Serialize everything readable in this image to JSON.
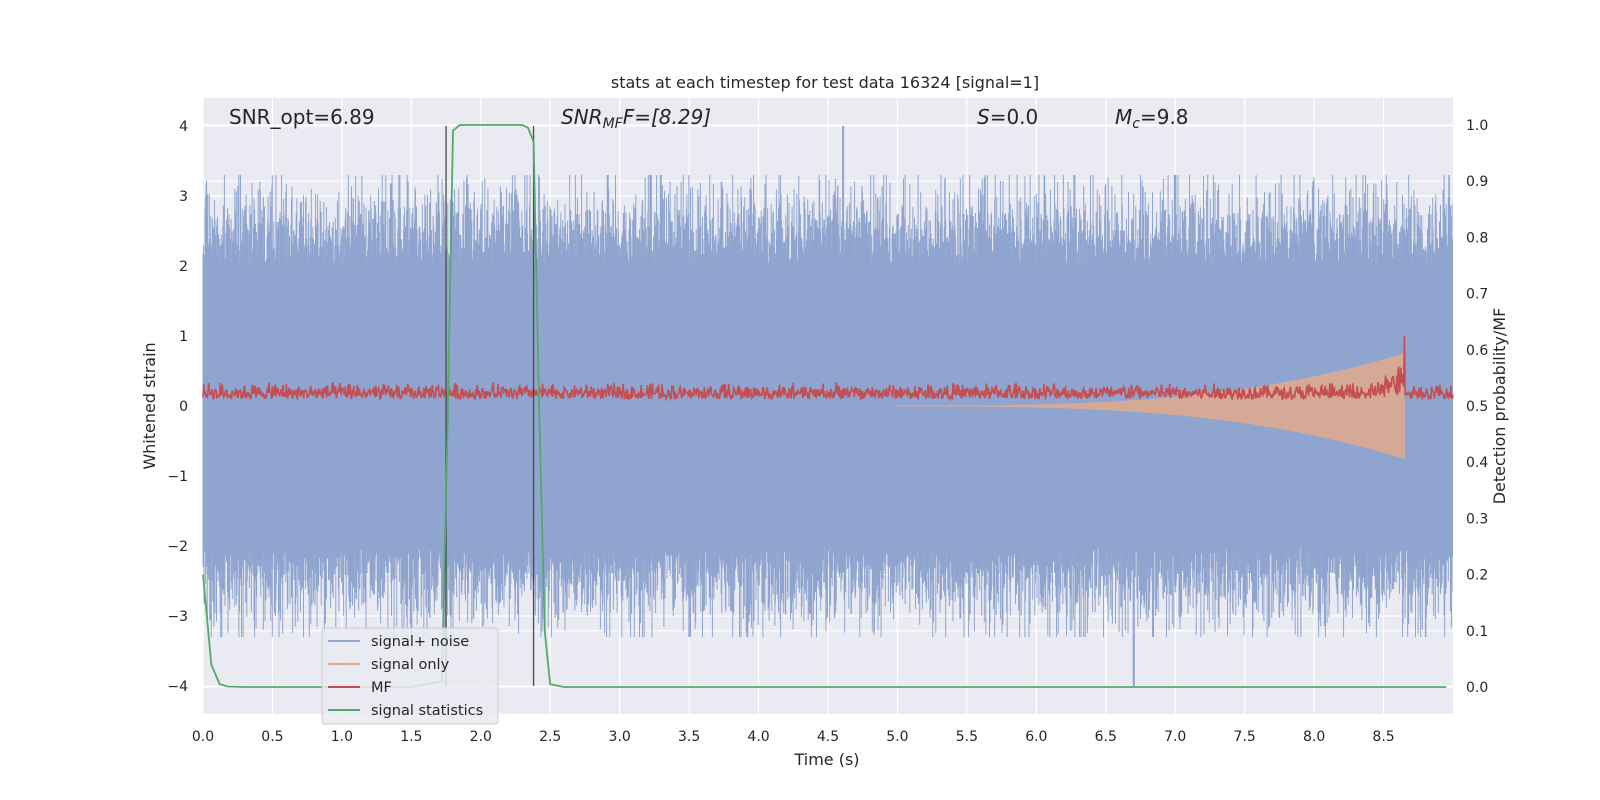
{
  "chart_data": {
    "type": "line",
    "title": "stats at each timestep for test data 16324 [signal=1]",
    "xlabel": "Time (s)",
    "ylabel_left": "Whitened strain",
    "ylabel_right": "Detection probability/MF",
    "xlim": [
      0.0,
      9.0
    ],
    "ylim_left": [
      -4.4,
      4.4
    ],
    "ylim_right": [
      -0.048,
      1.048
    ],
    "grid": true,
    "x_ticks": [
      "0.0",
      "0.5",
      "1.0",
      "1.5",
      "2.0",
      "2.5",
      "3.0",
      "3.5",
      "4.0",
      "4.5",
      "5.0",
      "5.5",
      "6.0",
      "6.5",
      "7.0",
      "7.5",
      "8.0",
      "8.5"
    ],
    "y_ticks_left": [
      "−4",
      "−3",
      "−2",
      "−1",
      "0",
      "1",
      "2",
      "3",
      "4"
    ],
    "y_ticks_right": [
      "0.0",
      "0.1",
      "0.2",
      "0.3",
      "0.4",
      "0.5",
      "0.6",
      "0.7",
      "0.8",
      "0.9",
      "1.0"
    ],
    "annotations": {
      "snr_opt": "SNR_opt=6.89",
      "snr_mf_main": "SNR",
      "snr_mf_sub": "MF",
      "snr_mf_tail": "F=[8.29]",
      "s_italic": "S",
      "s_rest": "=0.0",
      "mc_main": "M",
      "mc_sub": "c",
      "mc_rest": "=9.8"
    },
    "vertical_lines_x": [
      1.75,
      2.38
    ],
    "legend": {
      "position": "lower-left",
      "entries": [
        "signal+ noise",
        "signal only",
        "MF",
        "signal statistics"
      ]
    },
    "colors": {
      "signal_noise": "#8fa5cf",
      "signal_only": "#e0a98c",
      "mf": "#c44e52",
      "signal_statistics": "#55a868",
      "vlines": "#4a4a4a",
      "axes_bg": "#eaeaf2",
      "grid": "#ffffff"
    },
    "series": [
      {
        "name": "signal statistics",
        "axis": "right",
        "x": [
          0.0,
          0.06,
          0.12,
          0.18,
          0.3,
          0.5,
          1.0,
          1.5,
          1.72,
          1.76,
          1.8,
          1.85,
          1.9,
          2.1,
          2.3,
          2.34,
          2.38,
          2.42,
          2.46,
          2.5,
          2.6,
          3.0,
          4.0,
          5.0,
          6.0,
          7.0,
          8.0,
          8.95
        ],
        "y": [
          0.2,
          0.04,
          0.005,
          0.001,
          0.0,
          0.0,
          0.0,
          0.0,
          0.01,
          0.45,
          0.99,
          1.0,
          1.0,
          1.0,
          1.0,
          0.995,
          0.97,
          0.5,
          0.1,
          0.005,
          0.0,
          0.0,
          0.0,
          0.0,
          0.0,
          0.0,
          0.0,
          0.0
        ]
      },
      {
        "name": "signal+ noise",
        "axis": "left",
        "description_envelope": {
          "typical_max": 2.0,
          "typical_min": -2.0,
          "peak_max": 4.0,
          "peak_max_x": 4.61,
          "peak_min": -4.0,
          "peak_min_x": 6.7
        }
      },
      {
        "name": "MF",
        "axis": "left",
        "description_envelope": {
          "base": 0.1,
          "fluct": 0.25,
          "peak": 1.0,
          "peak_x": 8.65
        }
      },
      {
        "name": "signal only",
        "axis": "left",
        "description_envelope": {
          "start_x": 5.0,
          "end_x": 8.65,
          "peak_amplitude": 0.75
        }
      }
    ]
  }
}
